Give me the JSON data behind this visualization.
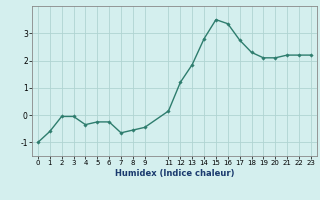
{
  "x": [
    0,
    1,
    2,
    3,
    4,
    5,
    6,
    7,
    8,
    9,
    11,
    12,
    13,
    14,
    15,
    16,
    17,
    18,
    19,
    20,
    21,
    22,
    23
  ],
  "y": [
    -1.0,
    -0.6,
    -0.05,
    -0.05,
    -0.35,
    -0.25,
    -0.25,
    -0.65,
    -0.55,
    -0.45,
    0.15,
    1.2,
    1.85,
    2.8,
    3.5,
    3.35,
    2.75,
    2.3,
    2.1,
    2.1,
    2.2,
    2.2,
    2.2
  ],
  "line_color": "#2e7d6e",
  "marker": "D",
  "marker_size": 1.8,
  "line_width": 1.0,
  "xlabel": "Humidex (Indice chaleur)",
  "background_color": "#d4efee",
  "grid_color": "#b0d4d2",
  "ylim": [
    -1.5,
    4.0
  ],
  "yticks": [
    -1,
    0,
    1,
    2,
    3
  ],
  "xtick_positions": [
    0,
    1,
    2,
    3,
    4,
    5,
    6,
    7,
    8,
    9,
    11,
    12,
    13,
    14,
    15,
    16,
    17,
    18,
    19,
    20,
    21,
    22,
    23
  ],
  "xtick_labels": [
    "0",
    "1",
    "2",
    "3",
    "4",
    "5",
    "6",
    "7",
    "8",
    "9",
    "11",
    "12",
    "13",
    "14",
    "15",
    "16",
    "17",
    "18",
    "19",
    "20",
    "21",
    "22",
    "23"
  ],
  "xlim": [
    -0.5,
    23.5
  ],
  "xlabel_fontsize": 6,
  "tick_fontsize": 5,
  "ytick_fontsize": 5.5
}
